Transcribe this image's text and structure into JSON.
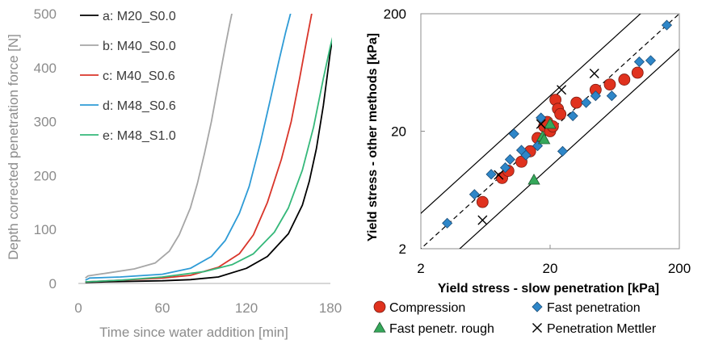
{
  "chart_data": [
    {
      "type": "line",
      "xlabel": "Time since water addition [min]",
      "ylabel": "Depth corrected penetration force [N]",
      "xlim": [
        0,
        180
      ],
      "ylim": [
        0,
        500
      ],
      "x_ticks": [
        "0",
        "60",
        "120",
        "180"
      ],
      "y_ticks": [
        "0",
        "100",
        "200",
        "300",
        "400",
        "500"
      ],
      "grid": false,
      "legend_position": "top-left",
      "series": [
        {
          "name": "a: M20_S0.0",
          "color": "#000000",
          "x": [
            5,
            20,
            40,
            60,
            80,
            100,
            120,
            135,
            150,
            160,
            165,
            170,
            175,
            180,
            185
          ],
          "y": [
            2,
            3,
            4,
            5,
            7,
            12,
            28,
            50,
            92,
            145,
            190,
            250,
            330,
            430,
            505
          ]
        },
        {
          "name": "b: M40_S0.0",
          "color": "#a6a6a6",
          "x": [
            5,
            7,
            20,
            40,
            55,
            65,
            72,
            80,
            85,
            90,
            95,
            100,
            105,
            108,
            110
          ],
          "y": [
            10,
            14,
            19,
            27,
            38,
            60,
            90,
            140,
            185,
            240,
            300,
            370,
            440,
            480,
            505
          ]
        },
        {
          "name": "c: M40_S0.6",
          "color": "#d9352a",
          "x": [
            5,
            30,
            60,
            80,
            100,
            115,
            125,
            135,
            145,
            152,
            158,
            163,
            167
          ],
          "y": [
            3,
            6,
            10,
            15,
            30,
            55,
            90,
            150,
            230,
            300,
            380,
            450,
            505
          ]
        },
        {
          "name": "d: M48_S0.6",
          "color": "#2e9bd6",
          "x": [
            5,
            8,
            30,
            60,
            80,
            95,
            105,
            115,
            122,
            130,
            137,
            143,
            148,
            152
          ],
          "y": [
            6,
            10,
            12,
            17,
            28,
            50,
            80,
            130,
            180,
            260,
            340,
            410,
            465,
            505
          ]
        },
        {
          "name": "e: M48_S1.0",
          "color": "#35b87a",
          "x": [
            5,
            30,
            60,
            90,
            110,
            125,
            140,
            150,
            160,
            168,
            175,
            180,
            182
          ],
          "y": [
            3,
            6,
            12,
            22,
            35,
            55,
            95,
            140,
            210,
            290,
            380,
            440,
            460
          ]
        }
      ]
    },
    {
      "type": "scatter",
      "xlabel": "Yield stress - slow penetration [kPa]",
      "ylabel": "Yield stress - other methods [kPa]",
      "scale": "log",
      "xlim": [
        2,
        200
      ],
      "ylim": [
        2,
        200
      ],
      "x_ticks": [
        "2",
        "20",
        "200"
      ],
      "y_ticks": [
        "2",
        "20",
        "200"
      ],
      "grid": false,
      "legend_position": "bottom",
      "reference_lines": [
        "y = x (dashed)",
        "y = 2x (solid)",
        "y = x/2 (solid)"
      ],
      "series": [
        {
          "name": "Compression",
          "marker": "circle",
          "color": "#e0321e",
          "x": [
            6,
            8.5,
            9.5,
            12,
            14,
            16,
            18,
            19,
            20,
            21,
            22,
            23,
            24,
            32,
            45,
            58,
            75,
            95
          ],
          "y": [
            5,
            8,
            9.2,
            11,
            13.5,
            17.5,
            22,
            24,
            20,
            22,
            37,
            31,
            28,
            35,
            45,
            50,
            55,
            63
          ]
        },
        {
          "name": "Fast penetration",
          "marker": "diamond",
          "color": "#2e86c8",
          "x": [
            3.2,
            5.2,
            7,
            9,
            9.8,
            10.5,
            12,
            13,
            16,
            17,
            25,
            30,
            38,
            45,
            60,
            98,
            120,
            160
          ],
          "y": [
            3.3,
            5.8,
            8.6,
            9.8,
            11.5,
            19,
            13.8,
            12.5,
            15,
            26,
            13.5,
            27,
            35,
            40,
            40,
            78,
            80,
            160
          ]
        },
        {
          "name": "Fast penetr. rough",
          "marker": "triangle",
          "color": "#35a85a",
          "x": [
            15,
            17.5,
            18,
            20
          ],
          "y": [
            7.7,
            18,
            17,
            23
          ]
        },
        {
          "name": "Penetration Mettler",
          "marker": "cross",
          "color": "#000000",
          "x": [
            6,
            8,
            17,
            24.5,
            44
          ],
          "y": [
            3.5,
            8.5,
            23,
            45,
            62
          ]
        }
      ]
    }
  ]
}
